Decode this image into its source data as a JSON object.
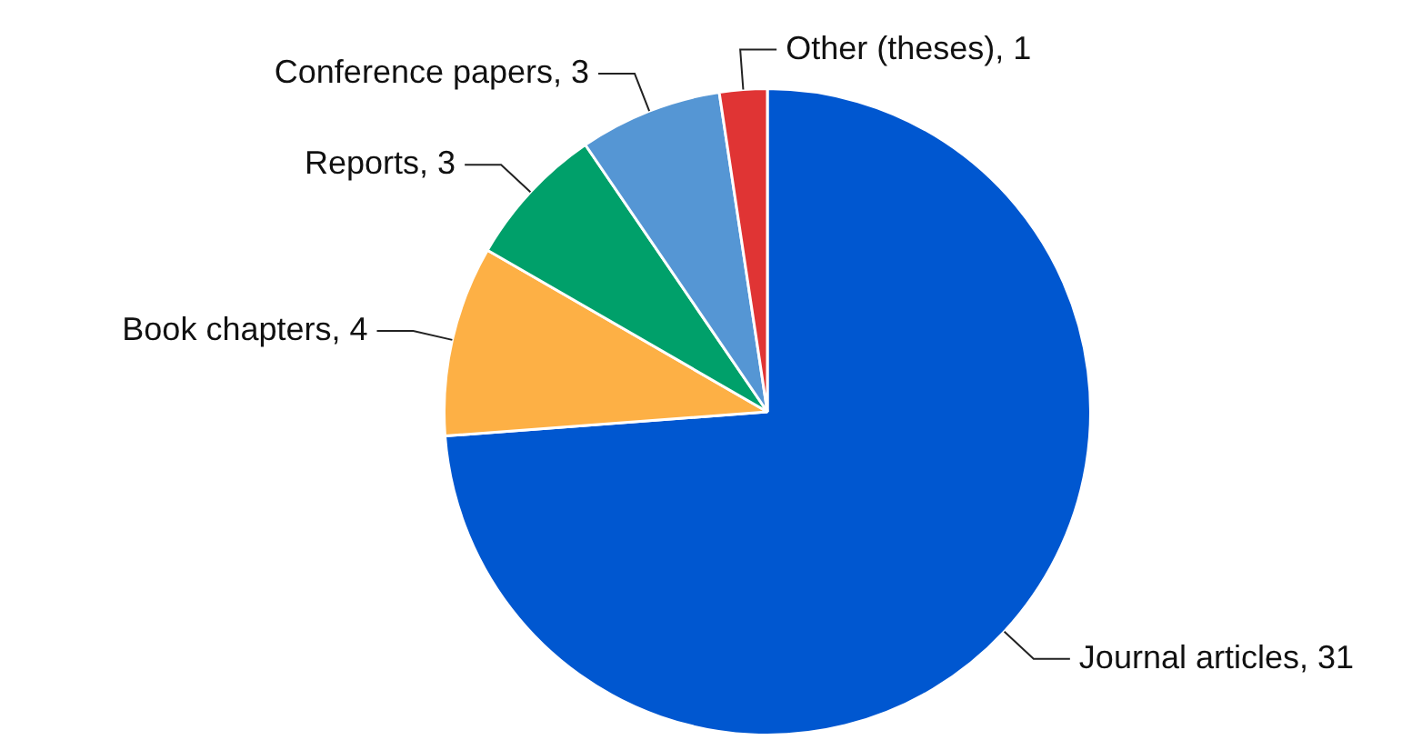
{
  "chart_data": {
    "type": "pie",
    "categories": [
      "Journal articles, 31",
      "Book chapters, 4",
      "Reports, 3",
      "Conference papers, 3",
      "Other (theses), 1"
    ],
    "values": [
      31,
      4,
      3,
      3,
      1
    ],
    "colors": [
      "#0057d0",
      "#fdb045",
      "#00a06a",
      "#5596d4",
      "#e03434"
    ],
    "legend": false
  }
}
